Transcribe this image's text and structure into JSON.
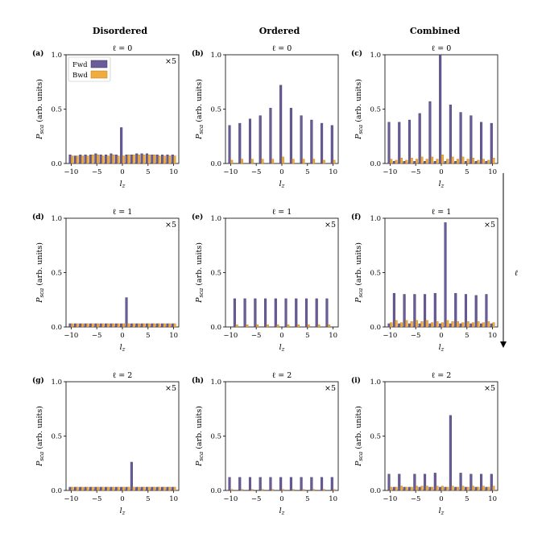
{
  "columns": [
    "Disordered",
    "Ordered",
    "Combined"
  ],
  "side_arrow_label": "ℓ",
  "legend": {
    "fwd": "Fwd",
    "bwd": "Bwd"
  },
  "colors": {
    "fwd": "#6a5b99",
    "bwd": "#f0ac3e",
    "fwd_edge": "#3b3360",
    "bwd_edge": "#b5791a"
  },
  "chart_data": [
    {
      "label": "(a)",
      "title": "ℓ = 0",
      "type": "bar",
      "xlabel": "l_z",
      "ylabel": "P_sca (arb. units)",
      "ylim": [
        0,
        1
      ],
      "yticks": [
        "0.0",
        "0.5",
        "1.0"
      ],
      "xticks": [
        "−10",
        "−5",
        "0",
        "5",
        "10"
      ],
      "multiplier": "×5",
      "legend": true,
      "x": [
        -10,
        -9,
        -8,
        -7,
        -6,
        -5,
        -4,
        -3,
        -2,
        -1,
        0,
        1,
        2,
        3,
        4,
        5,
        6,
        7,
        8,
        9,
        10
      ],
      "series": [
        {
          "name": "Fwd",
          "values": [
            0.08,
            0.07,
            0.08,
            0.08,
            0.08,
            0.09,
            0.08,
            0.08,
            0.09,
            0.08,
            0.33,
            0.08,
            0.08,
            0.09,
            0.09,
            0.09,
            0.08,
            0.08,
            0.08,
            0.08,
            0.08
          ]
        },
        {
          "name": "Bwd",
          "values": [
            0.07,
            0.07,
            0.07,
            0.07,
            0.08,
            0.08,
            0.07,
            0.07,
            0.08,
            0.07,
            0.07,
            0.08,
            0.08,
            0.08,
            0.08,
            0.08,
            0.08,
            0.07,
            0.07,
            0.07,
            0.07
          ]
        }
      ]
    },
    {
      "label": "(b)",
      "title": "ℓ = 0",
      "type": "bar",
      "xlabel": "l_z",
      "ylabel": "P_sca (arb. units)",
      "ylim": [
        0,
        1
      ],
      "yticks": [
        "0.0",
        "0.5",
        "1.0"
      ],
      "xticks": [
        "−10",
        "−5",
        "0",
        "5",
        "10"
      ],
      "multiplier": "",
      "legend": false,
      "x": [
        -10,
        -8,
        -6,
        -4,
        -2,
        0,
        2,
        4,
        6,
        8,
        10
      ],
      "series": [
        {
          "name": "Fwd",
          "values": [
            0.35,
            0.37,
            0.41,
            0.44,
            0.51,
            0.72,
            0.51,
            0.44,
            0.4,
            0.37,
            0.35
          ]
        },
        {
          "name": "Bwd",
          "values": [
            0.03,
            0.04,
            0.04,
            0.04,
            0.04,
            0.06,
            0.04,
            0.04,
            0.04,
            0.03,
            0.03
          ]
        }
      ]
    },
    {
      "label": "(c)",
      "title": "ℓ = 0",
      "type": "bar",
      "xlabel": "l_z",
      "ylabel": "P_sca (arb. units)",
      "ylim": [
        0,
        1
      ],
      "yticks": [
        "0.0",
        "0.5",
        "1.0"
      ],
      "xticks": [
        "−10",
        "−5",
        "0",
        "5",
        "10"
      ],
      "multiplier": "",
      "legend": false,
      "x": [
        -10,
        -9,
        -8,
        -7,
        -6,
        -5,
        -4,
        -3,
        -2,
        -1,
        0,
        1,
        2,
        3,
        4,
        5,
        6,
        7,
        8,
        9,
        10
      ],
      "series": [
        {
          "name": "Fwd",
          "values": [
            0.38,
            0.02,
            0.38,
            0.02,
            0.4,
            0.02,
            0.46,
            0.02,
            0.57,
            0.02,
            1.0,
            0.02,
            0.54,
            0.02,
            0.47,
            0.02,
            0.44,
            0.02,
            0.38,
            0.02,
            0.37
          ]
        },
        {
          "name": "Bwd",
          "values": [
            0.04,
            0.03,
            0.05,
            0.03,
            0.05,
            0.04,
            0.06,
            0.04,
            0.06,
            0.04,
            0.08,
            0.04,
            0.06,
            0.04,
            0.06,
            0.04,
            0.05,
            0.03,
            0.04,
            0.03,
            0.05
          ]
        }
      ]
    },
    {
      "label": "(d)",
      "title": "ℓ = 1",
      "type": "bar",
      "xlabel": "",
      "ylabel": "P_sca (arb. units)",
      "ylim": [
        0,
        1
      ],
      "yticks": [
        "0.0",
        "0.5",
        "1.0"
      ],
      "xticks": [
        "−10",
        "−5",
        "0",
        "5",
        "10"
      ],
      "multiplier": "×5",
      "legend": false,
      "x": [
        -10,
        -9,
        -8,
        -7,
        -6,
        -5,
        -4,
        -3,
        -2,
        -1,
        0,
        1,
        2,
        3,
        4,
        5,
        6,
        7,
        8,
        9,
        10
      ],
      "series": [
        {
          "name": "Fwd",
          "values": [
            0.03,
            0.03,
            0.03,
            0.03,
            0.03,
            0.03,
            0.03,
            0.03,
            0.03,
            0.03,
            0.03,
            0.27,
            0.03,
            0.03,
            0.03,
            0.03,
            0.03,
            0.03,
            0.03,
            0.03,
            0.03
          ]
        },
        {
          "name": "Bwd",
          "values": [
            0.03,
            0.03,
            0.03,
            0.03,
            0.03,
            0.03,
            0.03,
            0.03,
            0.03,
            0.03,
            0.03,
            0.03,
            0.03,
            0.03,
            0.03,
            0.03,
            0.03,
            0.03,
            0.03,
            0.03,
            0.03
          ]
        }
      ]
    },
    {
      "label": "(e)",
      "title": "ℓ = 1",
      "type": "bar",
      "xlabel": "",
      "ylabel": "P_sca (arb. units)",
      "ylim": [
        0,
        1
      ],
      "yticks": [
        "0.0",
        "0.5",
        "1.0"
      ],
      "xticks": [
        "−10",
        "−5",
        "0",
        "5",
        "10"
      ],
      "multiplier": "×5",
      "legend": false,
      "x": [
        -9,
        -7,
        -5,
        -3,
        -1,
        1,
        3,
        5,
        7,
        9
      ],
      "series": [
        {
          "name": "Fwd",
          "values": [
            0.26,
            0.26,
            0.26,
            0.26,
            0.26,
            0.26,
            0.26,
            0.26,
            0.26,
            0.26
          ]
        },
        {
          "name": "Bwd",
          "values": [
            0.02,
            0.02,
            0.02,
            0.02,
            0.02,
            0.02,
            0.02,
            0.02,
            0.02,
            0.02
          ]
        }
      ]
    },
    {
      "label": "(f)",
      "title": "ℓ = 1",
      "type": "bar",
      "xlabel": "",
      "ylabel": "P_sca (arb. units)",
      "ylim": [
        0,
        1
      ],
      "yticks": [
        "0.0",
        "0.5",
        "1.0"
      ],
      "xticks": [
        "−10",
        "−5",
        "0",
        "5",
        "10"
      ],
      "multiplier": "×5",
      "legend": false,
      "x": [
        -10,
        -9,
        -8,
        -7,
        -6,
        -5,
        -4,
        -3,
        -2,
        -1,
        0,
        1,
        2,
        3,
        4,
        5,
        6,
        7,
        8,
        9,
        10
      ],
      "series": [
        {
          "name": "Fwd",
          "values": [
            0.03,
            0.31,
            0.03,
            0.3,
            0.03,
            0.3,
            0.03,
            0.3,
            0.03,
            0.31,
            0.03,
            0.96,
            0.03,
            0.31,
            0.03,
            0.3,
            0.03,
            0.29,
            0.03,
            0.3,
            0.03
          ]
        },
        {
          "name": "Bwd",
          "values": [
            0.04,
            0.06,
            0.04,
            0.06,
            0.05,
            0.06,
            0.05,
            0.06,
            0.04,
            0.05,
            0.04,
            0.06,
            0.05,
            0.05,
            0.04,
            0.05,
            0.04,
            0.05,
            0.04,
            0.05,
            0.04
          ]
        }
      ]
    },
    {
      "label": "(g)",
      "title": "ℓ = 2",
      "type": "bar",
      "xlabel": "",
      "ylabel": "P_sca (arb. units)",
      "ylim": [
        0,
        1
      ],
      "yticks": [
        "0.0",
        "0.5",
        "1.0"
      ],
      "xticks": [
        "−10",
        "−5",
        "0",
        "5",
        "10"
      ],
      "multiplier": "×5",
      "legend": false,
      "x": [
        -10,
        -9,
        -8,
        -7,
        -6,
        -5,
        -4,
        -3,
        -2,
        -1,
        0,
        1,
        2,
        3,
        4,
        5,
        6,
        7,
        8,
        9,
        10
      ],
      "series": [
        {
          "name": "Fwd",
          "values": [
            0.03,
            0.03,
            0.03,
            0.03,
            0.03,
            0.03,
            0.03,
            0.03,
            0.03,
            0.03,
            0.03,
            0.03,
            0.26,
            0.03,
            0.03,
            0.03,
            0.03,
            0.03,
            0.03,
            0.03,
            0.03
          ]
        },
        {
          "name": "Bwd",
          "values": [
            0.03,
            0.03,
            0.03,
            0.03,
            0.03,
            0.03,
            0.03,
            0.03,
            0.03,
            0.03,
            0.03,
            0.03,
            0.03,
            0.03,
            0.03,
            0.03,
            0.03,
            0.03,
            0.03,
            0.03,
            0.03
          ]
        }
      ]
    },
    {
      "label": "(h)",
      "title": "ℓ = 2",
      "type": "bar",
      "xlabel": "",
      "ylabel": "P_sca (arb. units)",
      "ylim": [
        0,
        1
      ],
      "yticks": [
        "0.0",
        "0.5",
        "1.0"
      ],
      "xticks": [
        "−10",
        "−5",
        "0",
        "5",
        "10"
      ],
      "multiplier": "×5",
      "legend": false,
      "x": [
        -10,
        -8,
        -6,
        -4,
        -2,
        0,
        2,
        4,
        6,
        8,
        10
      ],
      "series": [
        {
          "name": "Fwd",
          "values": [
            0.12,
            0.12,
            0.12,
            0.12,
            0.12,
            0.12,
            0.12,
            0.12,
            0.12,
            0.12,
            0.12
          ]
        },
        {
          "name": "Bwd",
          "values": [
            0.01,
            0.01,
            0.01,
            0.01,
            0.01,
            0.01,
            0.01,
            0.01,
            0.01,
            0.01,
            0.01
          ]
        }
      ]
    },
    {
      "label": "(i)",
      "title": "ℓ = 2",
      "type": "bar",
      "xlabel": "",
      "ylabel": "P_sca (arb. units)",
      "ylim": [
        0,
        1
      ],
      "yticks": [
        "0.0",
        "0.5",
        "1.0"
      ],
      "xticks": [
        "−10",
        "−5",
        "0",
        "5",
        "10"
      ],
      "multiplier": "×5",
      "legend": false,
      "x": [
        -10,
        -9,
        -8,
        -7,
        -6,
        -5,
        -4,
        -3,
        -2,
        -1,
        0,
        1,
        2,
        3,
        4,
        5,
        6,
        7,
        8,
        9,
        10
      ],
      "series": [
        {
          "name": "Fwd",
          "values": [
            0.15,
            0.03,
            0.15,
            0.03,
            0.03,
            0.15,
            0.03,
            0.15,
            0.03,
            0.16,
            0.03,
            0.03,
            0.69,
            0.03,
            0.16,
            0.03,
            0.15,
            0.03,
            0.15,
            0.03,
            0.15
          ]
        },
        {
          "name": "Bwd",
          "values": [
            0.03,
            0.03,
            0.04,
            0.03,
            0.03,
            0.04,
            0.04,
            0.04,
            0.03,
            0.04,
            0.04,
            0.03,
            0.04,
            0.03,
            0.04,
            0.03,
            0.04,
            0.03,
            0.04,
            0.03,
            0.04
          ]
        }
      ]
    }
  ]
}
